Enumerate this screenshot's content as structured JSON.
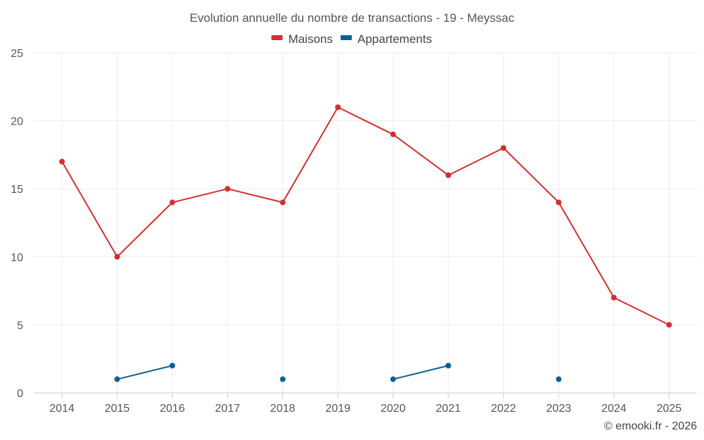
{
  "chart_data": {
    "type": "line",
    "title": "Evolution annuelle du nombre de transactions - 19 - Meyssac",
    "categories": [
      "2014",
      "2015",
      "2016",
      "2017",
      "2018",
      "2019",
      "2020",
      "2021",
      "2022",
      "2023",
      "2024",
      "2025"
    ],
    "ylim": [
      0,
      25
    ],
    "yticks": [
      "0",
      "5",
      "10",
      "15",
      "20",
      "25"
    ],
    "grid": true,
    "legend_position": "top-center",
    "series": [
      {
        "name": "Maisons",
        "color": "#d32f2f",
        "values": [
          17,
          10,
          14,
          15,
          14,
          21,
          19,
          16,
          18,
          14,
          7,
          5
        ]
      },
      {
        "name": "Appartements",
        "color": "#0a5f94",
        "values": [
          null,
          1,
          2,
          null,
          1,
          null,
          1,
          2,
          null,
          1,
          null,
          null
        ]
      }
    ],
    "credit": "© emooki.fr - 2026"
  }
}
